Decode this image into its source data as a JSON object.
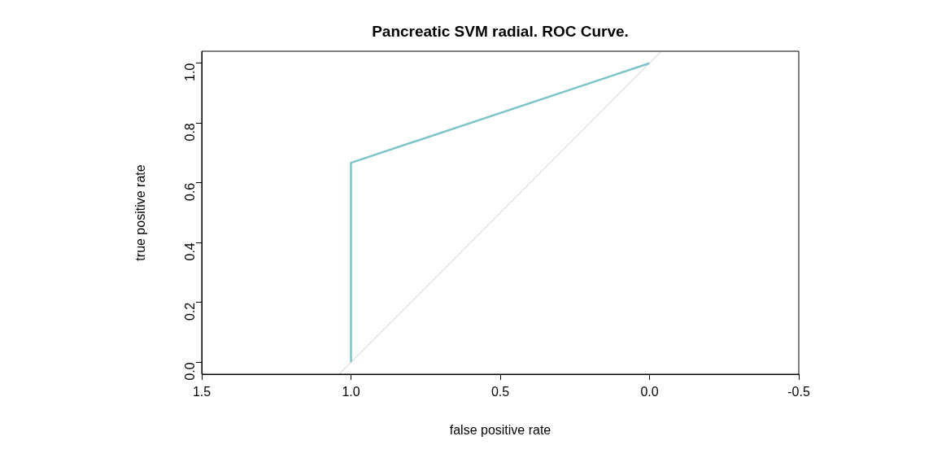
{
  "chart_data": {
    "type": "line",
    "title": "Pancreatic SVM radial. ROC Curve.",
    "xlabel": "false positive rate",
    "ylabel": "true positive rate",
    "xlim": [
      1.5,
      -0.5
    ],
    "xticks": [
      {
        "value": 1.5,
        "label": "1.5"
      },
      {
        "value": 1,
        "label": "1.0"
      },
      {
        "value": 0.5,
        "label": "0.5"
      },
      {
        "value": 0,
        "label": "0.0"
      },
      {
        "value": -0.5,
        "label": "-0.5"
      }
    ],
    "ylim": [
      -0.04,
      1.04
    ],
    "yticks": [
      {
        "value": 0,
        "label": "0.0"
      },
      {
        "value": 0.2,
        "label": "0.2"
      },
      {
        "value": 0.4,
        "label": "0.4"
      },
      {
        "value": 0.6,
        "label": "0.6"
      },
      {
        "value": 0.8,
        "label": "0.8"
      },
      {
        "value": 1,
        "label": "1.0"
      }
    ],
    "series": [
      {
        "color": "#c8c8c8",
        "x": [
          1.04,
          -0.04
        ],
        "values": [
          -0.04,
          1.04
        ]
      },
      {
        "color": "#7ec4cc",
        "x": [
          1,
          1,
          0
        ],
        "values": [
          0,
          0.667,
          1
        ]
      }
    ],
    "grid": false,
    "legend": false,
    "marker": "none"
  }
}
